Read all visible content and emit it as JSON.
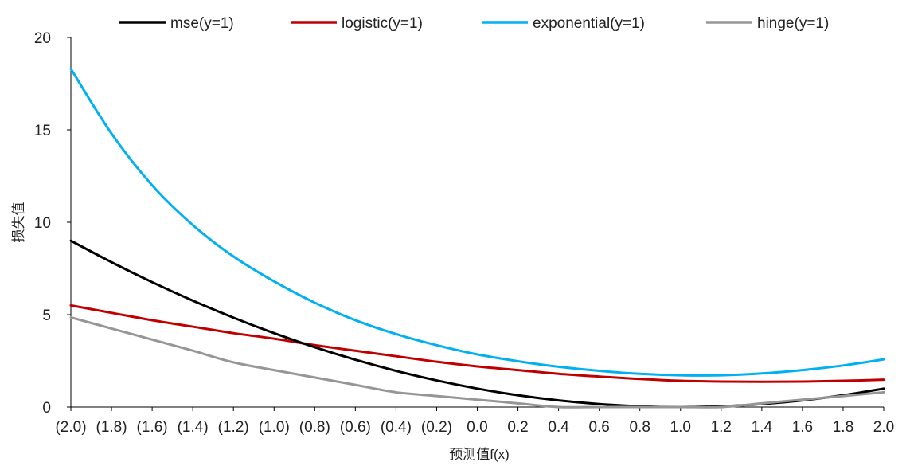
{
  "chart_data": {
    "type": "line",
    "title": "",
    "xlabel": "预测值f(x)",
    "ylabel": "损失值",
    "xlim": [
      -2.0,
      2.0
    ],
    "ylim": [
      0,
      20
    ],
    "ytick_values": [
      0,
      5,
      10,
      15,
      20
    ],
    "ytick_labels": [
      "0",
      "5",
      "10",
      "15",
      "20"
    ],
    "xtick_values": [
      -2.0,
      -1.8,
      -1.6,
      -1.4,
      -1.2,
      -1.0,
      -0.8,
      -0.6,
      -0.4,
      -0.2,
      0.0,
      0.2,
      0.4,
      0.6,
      0.8,
      1.0,
      1.2,
      1.4,
      1.6,
      1.8,
      2.0
    ],
    "xtick_labels": [
      "(2.0)",
      "(1.8)",
      "(1.6)",
      "(1.4)",
      "(1.2)",
      "(1.0)",
      "(0.8)",
      "(0.6)",
      "(0.4)",
      "(0.2)",
      "0.0",
      "0.2",
      "0.4",
      "0.6",
      "0.8",
      "1.0",
      "1.2",
      "1.4",
      "1.6",
      "1.8",
      "2.0"
    ],
    "grid": false,
    "legend_position": "top",
    "series": [
      {
        "name": "mse(y=1)",
        "color": "#000000",
        "x": [
          -2.0,
          -1.8,
          -1.6,
          -1.4,
          -1.2,
          -1.0,
          -0.8,
          -0.6,
          -0.4,
          -0.2,
          0.0,
          0.2,
          0.4,
          0.6,
          0.8,
          1.0,
          1.2,
          1.4,
          1.6,
          1.8,
          2.0
        ],
        "y": [
          9.0,
          7.84,
          6.76,
          5.76,
          4.84,
          4.0,
          3.24,
          2.56,
          1.96,
          1.44,
          1.0,
          0.64,
          0.36,
          0.16,
          0.04,
          0.0,
          0.04,
          0.16,
          0.36,
          0.64,
          1.0
        ]
      },
      {
        "name": "logistic(y=1)",
        "color": "#c00000",
        "x": [
          -2.0,
          -1.8,
          -1.6,
          -1.4,
          -1.2,
          -1.0,
          -0.8,
          -0.6,
          -0.4,
          -0.2,
          0.0,
          0.2,
          0.4,
          0.6,
          0.8,
          1.0,
          1.2,
          1.4,
          1.6,
          1.8,
          2.0
        ],
        "y": [
          5.5,
          5.1,
          4.7,
          4.35,
          4.0,
          3.7,
          3.35,
          3.05,
          2.75,
          2.45,
          2.2,
          2.0,
          1.8,
          1.65,
          1.52,
          1.42,
          1.38,
          1.37,
          1.38,
          1.42,
          1.48
        ]
      },
      {
        "name": "exponential(y=1)",
        "color": "#00b0f0",
        "x": [
          -2.0,
          -1.8,
          -1.6,
          -1.4,
          -1.2,
          -1.0,
          -0.8,
          -0.6,
          -0.4,
          -0.2,
          0.0,
          0.2,
          0.4,
          0.6,
          0.8,
          1.0,
          1.2,
          1.4,
          1.6,
          1.8,
          2.0
        ],
        "y": [
          18.3,
          14.8,
          12.0,
          9.85,
          8.15,
          6.8,
          5.65,
          4.7,
          3.95,
          3.35,
          2.85,
          2.48,
          2.18,
          1.96,
          1.8,
          1.72,
          1.72,
          1.82,
          2.0,
          2.25,
          2.58
        ]
      },
      {
        "name": "hinge(y=1)",
        "color": "#969696",
        "x": [
          -2.0,
          -1.8,
          -1.6,
          -1.4,
          -1.2,
          -1.0,
          -0.8,
          -0.6,
          -0.4,
          -0.2,
          0.0,
          0.2,
          0.4,
          0.6,
          0.8,
          1.0,
          1.2,
          1.4,
          1.6,
          1.8,
          2.0
        ],
        "y": [
          4.85,
          4.25,
          3.65,
          3.05,
          2.42,
          2.0,
          1.6,
          1.2,
          0.8,
          0.6,
          0.4,
          0.2,
          0.0,
          0.0,
          0.0,
          0.0,
          0.0,
          0.2,
          0.4,
          0.6,
          0.8
        ]
      }
    ]
  }
}
